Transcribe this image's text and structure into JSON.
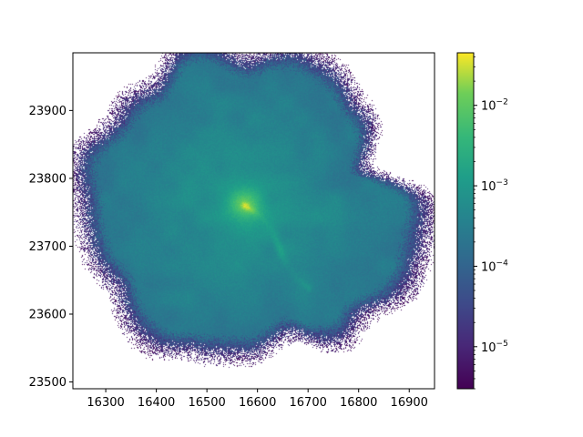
{
  "chart_data": {
    "type": "heatmap",
    "title": "",
    "xlabel": "",
    "ylabel": "",
    "xlim": [
      16235,
      16950
    ],
    "ylim": [
      23490,
      23985
    ],
    "x_ticks": [
      "16300",
      "16400",
      "16500",
      "16600",
      "16700",
      "16800",
      "16900"
    ],
    "x_tick_values": [
      16300,
      16400,
      16500,
      16600,
      16700,
      16800,
      16900
    ],
    "y_ticks": [
      "23500",
      "23600",
      "23700",
      "23800",
      "23900"
    ],
    "y_tick_values": [
      23500,
      23600,
      23700,
      23800,
      23900
    ],
    "colormap": "viridis",
    "colorbar": {
      "scale": "log",
      "range": [
        3e-06,
        0.045
      ],
      "ticks": [
        {
          "base": "10",
          "exp": "−2",
          "value": 0.01
        },
        {
          "base": "10",
          "exp": "−3",
          "value": 0.001
        },
        {
          "base": "10",
          "exp": "−4",
          "value": 0.0001
        },
        {
          "base": "10",
          "exp": "−5",
          "value": 1e-05
        }
      ]
    },
    "grid": false,
    "description_structure": {
      "center": [
        16575,
        23760
      ],
      "filament_end": [
        16705,
        23640
      ]
    }
  }
}
